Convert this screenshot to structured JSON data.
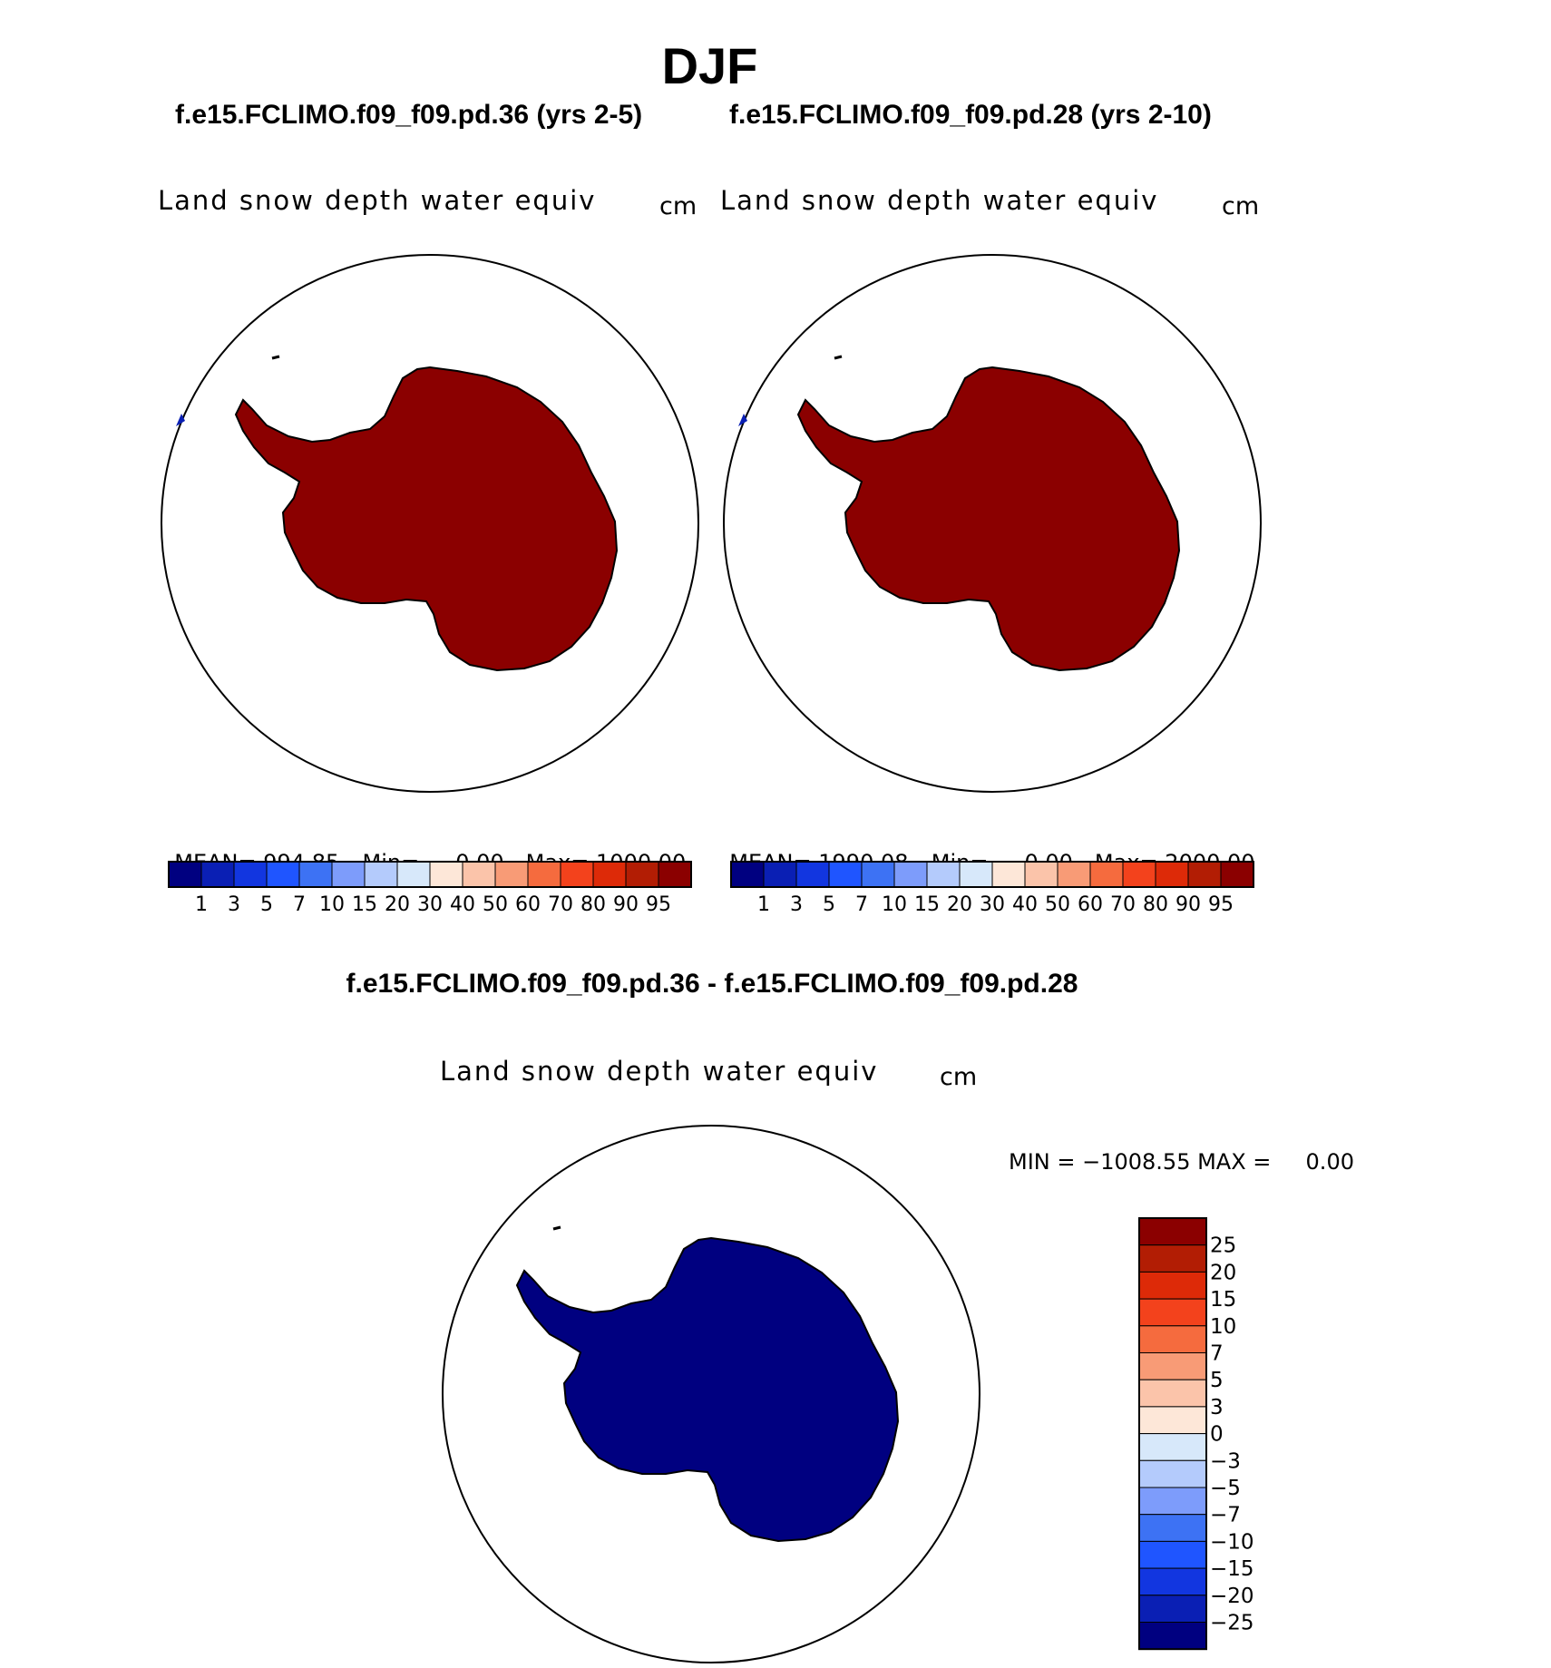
{
  "season": "DJF",
  "panels": [
    {
      "case": "f.e15.FCLIMO.f09_f09.pd.36 (yrs 2-5)",
      "variable": "Land snow depth water equiv",
      "units": "cm",
      "mean_label": "MEAN=",
      "mean": "994.85",
      "min_label": "Min=",
      "min": "0.00",
      "max_label": "Max=",
      "max": "1000.00",
      "fill_color": "#8b0000"
    },
    {
      "case": "f.e15.FCLIMO.f09_f09.pd.28 (yrs 2-10)",
      "variable": "Land snow depth water equiv",
      "units": "cm",
      "mean_label": "MEAN=",
      "mean": "1990.08",
      "min_label": "Min=",
      "min": "0.00",
      "max_label": "Max=",
      "max": "2000.00",
      "fill_color": "#8b0000"
    }
  ],
  "colorbar": {
    "colors": [
      "#000080",
      "#0a1fb4",
      "#1236e0",
      "#1f55ff",
      "#3d72f4",
      "#7d9cfb",
      "#b4cbfc",
      "#d7e8fa",
      "#fde7d8",
      "#fbc4aa",
      "#f89b76",
      "#f56b3e",
      "#f3421c",
      "#dd2a08",
      "#b21d04",
      "#8b0000"
    ],
    "labels": [
      "1",
      "3",
      "5",
      "7",
      "10",
      "15",
      "20",
      "30",
      "40",
      "50",
      "60",
      "70",
      "80",
      "90",
      "95"
    ]
  },
  "difference": {
    "title": "f.e15.FCLIMO.f09_f09.pd.36 - f.e15.FCLIMO.f09_f09.pd.28",
    "variable": "Land snow depth water equiv",
    "units": "cm",
    "minmax": "MIN = −1008.55 MAX =     0.00",
    "fill_color": "#000080",
    "colorbar": {
      "colors_top_to_bottom": [
        "#8b0000",
        "#b21d04",
        "#dd2a08",
        "#f3421c",
        "#f56b3e",
        "#f89b76",
        "#fbc4aa",
        "#fde7d8",
        "#d7e8fa",
        "#b4cbfc",
        "#7d9cfb",
        "#3d72f4",
        "#1f55ff",
        "#1236e0",
        "#0a1fb4",
        "#000080"
      ],
      "labels_top_to_bottom": [
        "25",
        "20",
        "15",
        "10",
        "7",
        "5",
        "3",
        "0",
        "−3",
        "−5",
        "−7",
        "−10",
        "−15",
        "−20",
        "−25"
      ]
    }
  },
  "icons": [
    "antarctica-map",
    "south-polar-projection-circle"
  ]
}
